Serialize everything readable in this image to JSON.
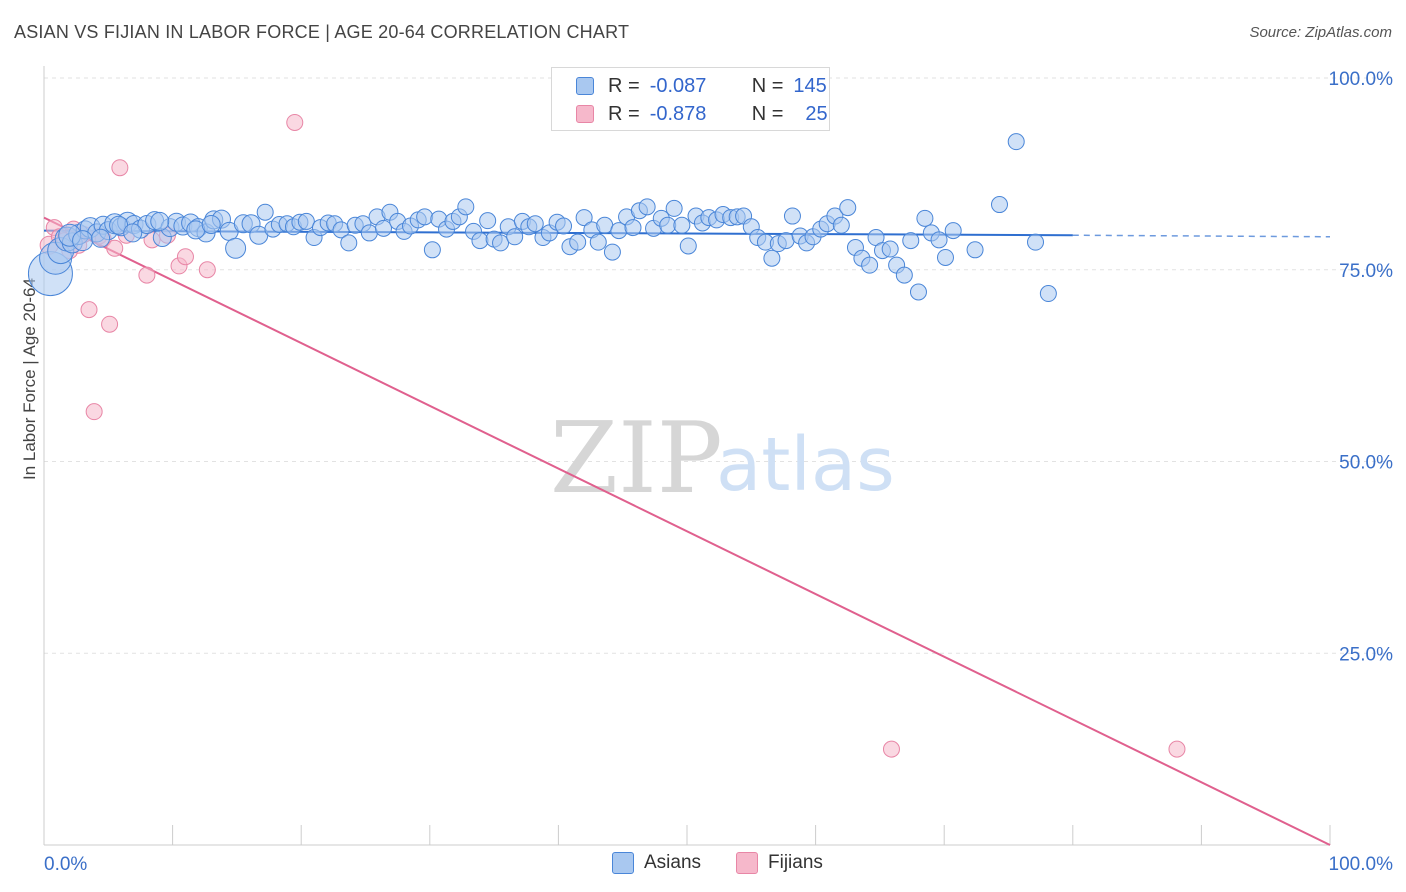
{
  "title": "ASIAN VS FIJIAN IN LABOR FORCE | AGE 20-64 CORRELATION CHART",
  "source": "Source: ZipAtlas.com",
  "watermark": {
    "zip": "ZIP",
    "atlas": "atlas"
  },
  "colors": {
    "asian_fill": "#a9c8f0",
    "asian_stroke": "#4a86d8",
    "asian_line": "#2f6fd0",
    "fijian_fill": "#f6b8cb",
    "fijian_stroke": "#e886a6",
    "fijian_line": "#e0608e",
    "axis_label": "#3a6fc8"
  },
  "legend": {
    "rows": [
      {
        "r_label": "R =",
        "r_value": "-0.087",
        "n_label": "N =",
        "n_value": "145"
      },
      {
        "r_label": "R =",
        "r_value": "-0.878",
        "n_label": "N =",
        "n_value": "25"
      }
    ]
  },
  "bottom_legend": [
    "Asians",
    "Fijians"
  ],
  "chart_data": {
    "type": "scatter",
    "title": "ASIAN VS FIJIAN IN LABOR FORCE | AGE 20-64 CORRELATION CHART",
    "xlabel": "",
    "ylabel": "In Labor Force | Age 20-64",
    "xlim": [
      0,
      100
    ],
    "ylim": [
      0,
      100
    ],
    "x_tick_labels": [
      "0.0%",
      "100.0%"
    ],
    "y_tick_labels": [
      "100.0%",
      "75.0%",
      "50.0%",
      "25.0%"
    ],
    "y_ticks": [
      100,
      75,
      50,
      25
    ],
    "grid": true,
    "legend_position": "top-center",
    "series": [
      {
        "name": "Asians",
        "R": -0.087,
        "N": 145,
        "trend": {
          "x0": 0,
          "y0": 80.1,
          "x1": 80,
          "y1": 79.5,
          "dashed_to_x": 100,
          "dashed_y1": 79.3
        },
        "points": [
          [
            0.5,
            74.5,
            22
          ],
          [
            0.9,
            76.5,
            16
          ],
          [
            1.3,
            77.5,
            13
          ],
          [
            1.8,
            79,
            12
          ],
          [
            2.2,
            78.5,
            10
          ],
          [
            2.7,
            79.6,
            10
          ],
          [
            3.2,
            80.2,
            9
          ],
          [
            3.6,
            80.5,
            10
          ],
          [
            4.1,
            79.8,
            9
          ],
          [
            4.6,
            80.8,
            9
          ],
          [
            5.0,
            80.1,
            9
          ],
          [
            5.5,
            81.0,
            10
          ],
          [
            6.0,
            80.6,
            9
          ],
          [
            6.5,
            81.2,
            10
          ],
          [
            7.0,
            80.9,
            9
          ],
          [
            7.5,
            80.3,
            9
          ],
          [
            8.0,
            80.9,
            9
          ],
          [
            8.6,
            81.4,
            9
          ],
          [
            9.2,
            79.2,
            9
          ],
          [
            9.8,
            80.5,
            9
          ],
          [
            10.3,
            81.2,
            9
          ],
          [
            10.8,
            80.7,
            9
          ],
          [
            11.4,
            81.1,
            9
          ],
          [
            12.0,
            80.5,
            9
          ],
          [
            12.6,
            79.8,
            9
          ],
          [
            13.2,
            81.5,
            9
          ],
          [
            13.8,
            81.6,
            9
          ],
          [
            14.4,
            80.0,
            9
          ],
          [
            14.9,
            77.8,
            10
          ],
          [
            15.5,
            81.0,
            9
          ],
          [
            16.1,
            81.0,
            9
          ],
          [
            16.7,
            79.5,
            9
          ],
          [
            17.2,
            82.5,
            8
          ],
          [
            17.8,
            80.3,
            8
          ],
          [
            18.3,
            80.9,
            8
          ],
          [
            18.9,
            81.0,
            8
          ],
          [
            19.4,
            80.6,
            8
          ],
          [
            19.9,
            81.2,
            8
          ],
          [
            20.4,
            81.3,
            8
          ],
          [
            21.0,
            79.2,
            8
          ],
          [
            21.5,
            80.5,
            8
          ],
          [
            22.1,
            81.1,
            8
          ],
          [
            22.6,
            81.0,
            8
          ],
          [
            23.1,
            80.2,
            8
          ],
          [
            23.7,
            78.5,
            8
          ],
          [
            24.2,
            80.8,
            8
          ],
          [
            24.8,
            81.0,
            8
          ],
          [
            25.3,
            79.8,
            8
          ],
          [
            25.9,
            81.9,
            8
          ],
          [
            26.4,
            80.4,
            8
          ],
          [
            26.9,
            82.5,
            8
          ],
          [
            27.5,
            81.3,
            8
          ],
          [
            28.0,
            80.0,
            8
          ],
          [
            28.5,
            80.7,
            8
          ],
          [
            29.1,
            81.5,
            8
          ],
          [
            29.6,
            81.9,
            8
          ],
          [
            30.2,
            77.6,
            8
          ],
          [
            30.7,
            81.6,
            8
          ],
          [
            31.3,
            80.3,
            8
          ],
          [
            31.8,
            81.3,
            8
          ],
          [
            32.3,
            81.9,
            8
          ],
          [
            32.8,
            83.2,
            8
          ],
          [
            33.4,
            80.0,
            8
          ],
          [
            33.9,
            78.8,
            8
          ],
          [
            34.5,
            81.4,
            8
          ],
          [
            35.0,
            79.0,
            8
          ],
          [
            35.5,
            78.5,
            8
          ],
          [
            36.1,
            80.6,
            8
          ],
          [
            36.6,
            79.3,
            8
          ],
          [
            37.2,
            81.3,
            8
          ],
          [
            37.7,
            80.6,
            8
          ],
          [
            38.2,
            81.0,
            8
          ],
          [
            38.8,
            79.2,
            8
          ],
          [
            39.3,
            79.8,
            8
          ],
          [
            39.9,
            81.2,
            8
          ],
          [
            40.4,
            80.7,
            8
          ],
          [
            40.9,
            78.0,
            8
          ],
          [
            41.5,
            78.6,
            8
          ],
          [
            42.0,
            81.8,
            8
          ],
          [
            42.6,
            80.2,
            8
          ],
          [
            43.1,
            78.6,
            8
          ],
          [
            43.6,
            80.8,
            8
          ],
          [
            44.2,
            77.3,
            8
          ],
          [
            44.7,
            80.1,
            8
          ],
          [
            45.3,
            81.9,
            8
          ],
          [
            45.8,
            80.5,
            8
          ],
          [
            46.3,
            82.7,
            8
          ],
          [
            46.9,
            83.2,
            8
          ],
          [
            47.4,
            80.4,
            8
          ],
          [
            48.0,
            81.7,
            8
          ],
          [
            48.5,
            80.8,
            8
          ],
          [
            49.0,
            83.0,
            8
          ],
          [
            49.6,
            80.8,
            8
          ],
          [
            50.1,
            78.1,
            8
          ],
          [
            50.7,
            82.0,
            8
          ],
          [
            51.2,
            81.1,
            8
          ],
          [
            51.7,
            81.8,
            8
          ],
          [
            52.3,
            81.5,
            8
          ],
          [
            52.8,
            82.2,
            8
          ],
          [
            53.4,
            81.8,
            8
          ],
          [
            53.9,
            81.9,
            8
          ],
          [
            54.4,
            82.0,
            8
          ],
          [
            55.0,
            80.6,
            8
          ],
          [
            55.5,
            79.2,
            8
          ],
          [
            56.1,
            78.6,
            8
          ],
          [
            56.6,
            76.5,
            8
          ],
          [
            57.1,
            78.4,
            8
          ],
          [
            57.7,
            78.8,
            8
          ],
          [
            58.2,
            82.0,
            8
          ],
          [
            58.8,
            79.4,
            8
          ],
          [
            59.3,
            78.5,
            8
          ],
          [
            59.8,
            79.3,
            8
          ],
          [
            60.4,
            80.3,
            8
          ],
          [
            60.9,
            81.0,
            8
          ],
          [
            61.5,
            82.0,
            8
          ],
          [
            62.0,
            80.8,
            8
          ],
          [
            62.5,
            83.1,
            8
          ],
          [
            63.1,
            77.9,
            8
          ],
          [
            63.6,
            76.5,
            8
          ],
          [
            64.2,
            75.6,
            8
          ],
          [
            64.7,
            79.2,
            8
          ],
          [
            65.2,
            77.5,
            8
          ],
          [
            65.8,
            77.7,
            8
          ],
          [
            66.3,
            75.6,
            8
          ],
          [
            66.9,
            74.3,
            8
          ],
          [
            67.4,
            78.8,
            8
          ],
          [
            68.0,
            72.1,
            8
          ],
          [
            68.5,
            81.7,
            8
          ],
          [
            69.0,
            79.8,
            8
          ],
          [
            69.6,
            78.9,
            8
          ],
          [
            70.1,
            76.6,
            8
          ],
          [
            70.7,
            80.1,
            8
          ],
          [
            72.4,
            77.6,
            8
          ],
          [
            74.3,
            83.5,
            8
          ],
          [
            75.6,
            91.7,
            8
          ],
          [
            77.1,
            78.6,
            8
          ],
          [
            78.1,
            71.9,
            8
          ],
          [
            2.0,
            79.5,
            11
          ],
          [
            3.0,
            78.8,
            10
          ],
          [
            4.4,
            79.1,
            9
          ],
          [
            5.8,
            80.8,
            9
          ],
          [
            6.9,
            79.8,
            9
          ],
          [
            9.0,
            81.3,
            9
          ],
          [
            11.8,
            80.2,
            9
          ],
          [
            13.0,
            80.9,
            9
          ]
        ]
      },
      {
        "name": "Fijians",
        "R": -0.878,
        "N": 25,
        "trend": {
          "x0": 0,
          "y0": 81.8,
          "x1": 100,
          "y1": 0
        },
        "points": [
          [
            0.4,
            78.2,
            9
          ],
          [
            0.8,
            80.5,
            8
          ],
          [
            1.2,
            79.3,
            8
          ],
          [
            1.6,
            78.8,
            8
          ],
          [
            2.0,
            77.5,
            8
          ],
          [
            2.3,
            80.3,
            8
          ],
          [
            2.7,
            78.2,
            8
          ],
          [
            3.1,
            79.6,
            8
          ],
          [
            3.5,
            69.8,
            8
          ],
          [
            3.9,
            56.5,
            8
          ],
          [
            4.3,
            79.4,
            8
          ],
          [
            4.6,
            79.0,
            8
          ],
          [
            5.1,
            67.9,
            8
          ],
          [
            5.5,
            77.8,
            8
          ],
          [
            5.9,
            88.3,
            8
          ],
          [
            6.4,
            79.5,
            8
          ],
          [
            8.0,
            74.3,
            8
          ],
          [
            8.4,
            78.9,
            8
          ],
          [
            9.6,
            79.5,
            8
          ],
          [
            10.5,
            75.5,
            8
          ],
          [
            11.0,
            76.7,
            8
          ],
          [
            12.7,
            75.0,
            8
          ],
          [
            19.5,
            94.2,
            8
          ],
          [
            65.9,
            12.5,
            8
          ],
          [
            88.1,
            12.5,
            8
          ]
        ]
      }
    ]
  }
}
